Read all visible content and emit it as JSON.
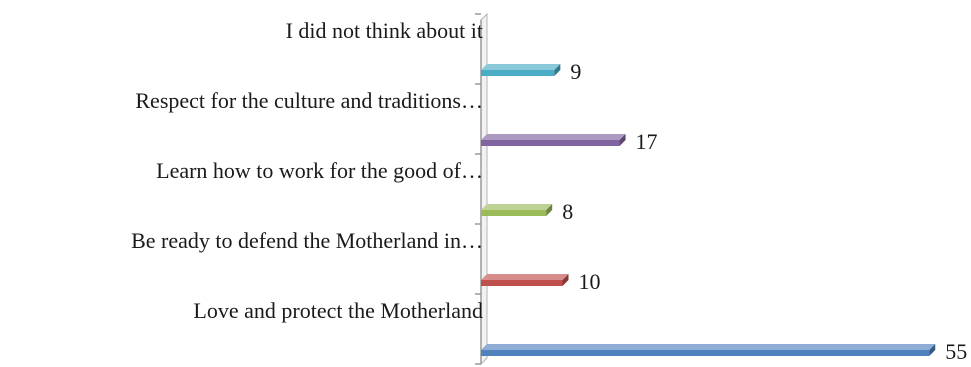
{
  "chart_data": {
    "type": "bar",
    "orientation": "horizontal",
    "style": "3d-cylinder",
    "categories": [
      "Love and protect the Motherland",
      "Be ready to defend the Motherland in…",
      "Learn how to work for the good of…",
      "Respect for the culture and traditions…",
      "I did not think about it"
    ],
    "values": [
      55,
      10,
      8,
      17,
      9
    ],
    "colors": [
      "#4f81bd",
      "#c0504d",
      "#9bbb59",
      "#8064a2",
      "#4bacc6"
    ],
    "data_labels": [
      "55",
      "10",
      "8",
      "17",
      "9"
    ],
    "xlim": [
      0,
      55
    ],
    "grid": false,
    "legend": "none",
    "title": "",
    "xlabel": "",
    "ylabel": ""
  }
}
